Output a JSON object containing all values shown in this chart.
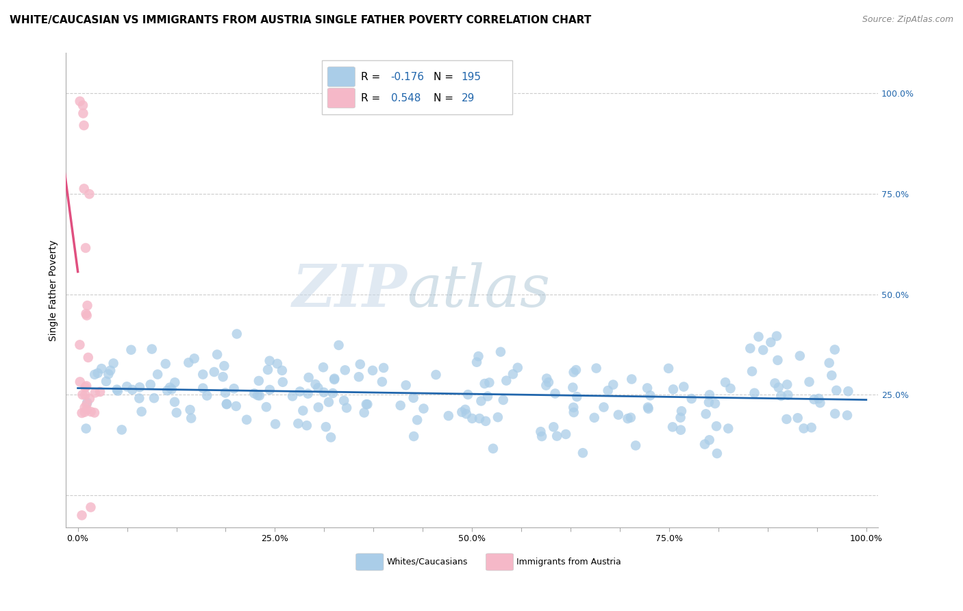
{
  "title": "WHITE/CAUCASIAN VS IMMIGRANTS FROM AUSTRIA SINGLE FATHER POVERTY CORRELATION CHART",
  "source": "Source: ZipAtlas.com",
  "ylabel": "Single Father Poverty",
  "watermark_zip": "ZIP",
  "watermark_atlas": "atlas",
  "blue_R": -0.176,
  "blue_N": 195,
  "pink_R": 0.548,
  "pink_N": 29,
  "blue_color": "#aacde8",
  "pink_color": "#f5b8c8",
  "blue_line_color": "#2166ac",
  "pink_line_color": "#e05080",
  "pink_line_dashed_color": "#e8a0b8",
  "bg_color": "#ffffff",
  "grid_color": "#cccccc",
  "ytick_labels_right": [
    "100.0%",
    "75.0%",
    "50.0%",
    "25.0%"
  ],
  "ytick_values": [
    1.0,
    0.75,
    0.5,
    0.25
  ],
  "xtick_labels": [
    "0.0%",
    "",
    "",
    "",
    "25.0%",
    "",
    "",
    "",
    "50.0%",
    "",
    "",
    "",
    "75.0%",
    "",
    "",
    "",
    "100.0%"
  ],
  "xtick_values": [
    0.0,
    0.0625,
    0.125,
    0.1875,
    0.25,
    0.3125,
    0.375,
    0.4375,
    0.5,
    0.5625,
    0.625,
    0.6875,
    0.75,
    0.8125,
    0.875,
    0.9375,
    1.0
  ],
  "legend_label1": "Whites/Caucasians",
  "legend_label2": "Immigrants from Austria",
  "title_fontsize": 11,
  "source_fontsize": 9,
  "axis_fontsize": 10,
  "tick_fontsize": 9
}
